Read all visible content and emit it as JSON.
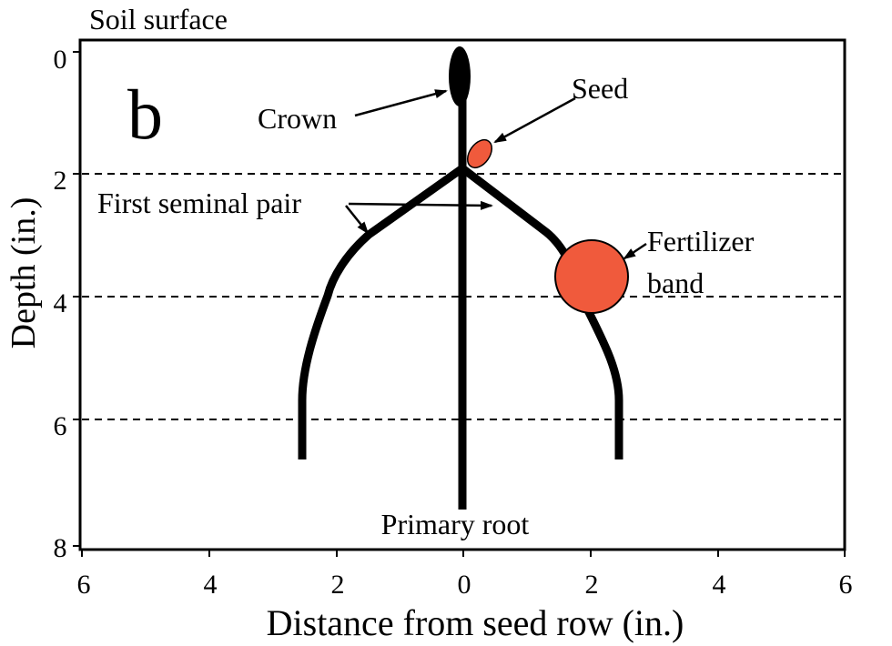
{
  "figure": {
    "panel_letter": "b",
    "top_label": "Soil surface",
    "xlabel": "Distance from seed row (in.)",
    "ylabel": "Depth (in.)"
  },
  "axes": {
    "x_ticks": [
      "6",
      "4",
      "2",
      "0",
      "2",
      "4",
      "6"
    ],
    "y_ticks": [
      "0",
      "2",
      "4",
      "6",
      "8"
    ],
    "x_range": [
      -6,
      6
    ],
    "y_range": [
      0,
      8
    ],
    "dashed_depths": [
      2,
      4,
      6
    ]
  },
  "annotations": {
    "crown": "Crown",
    "seed": "Seed",
    "first_seminal_pair": "First seminal pair",
    "fertilizer_line1": "Fertilizer",
    "fertilizer_line2": "band",
    "primary_root": "Primary root"
  },
  "colors": {
    "seed": "#f05a3c",
    "fertilizer": "#f05a3c",
    "crown": "#000000",
    "root": "#000000"
  }
}
